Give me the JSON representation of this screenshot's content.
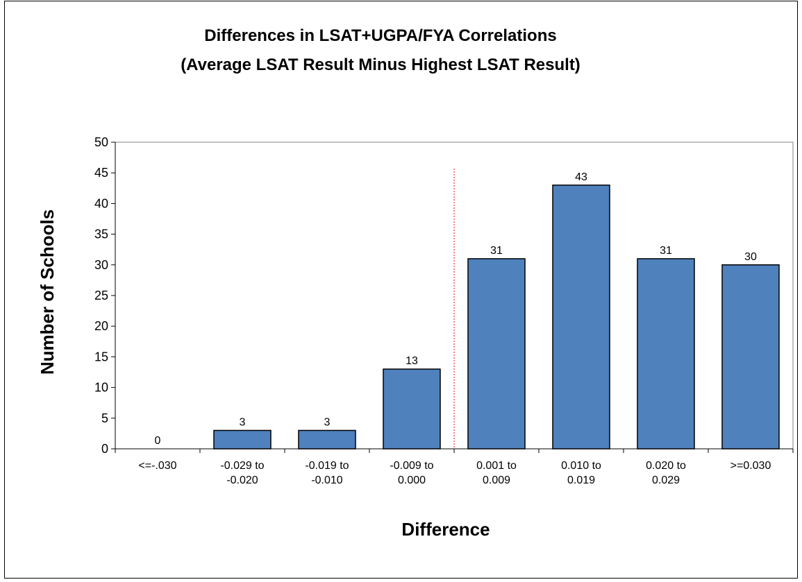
{
  "chart_data": {
    "type": "bar",
    "title": "Differences in LSAT+UGPA/FYA Correlations",
    "subtitle": "(Average LSAT Result Minus Highest LSAT Result)",
    "xlabel": "Difference",
    "ylabel": "Number of Schools",
    "categories": [
      [
        "<=-.030"
      ],
      [
        "-0.029 to",
        "-0.020"
      ],
      [
        "-0.019 to",
        "-0.010"
      ],
      [
        "-0.009 to",
        "0.000"
      ],
      [
        "0.001 to",
        "0.009"
      ],
      [
        "0.010 to",
        "0.019"
      ],
      [
        "0.020 to",
        "0.029"
      ],
      [
        ">=0.030"
      ]
    ],
    "values": [
      0,
      3,
      3,
      13,
      31,
      43,
      31,
      30
    ],
    "data_labels": [
      "0",
      "3",
      "3",
      "13",
      "31",
      "43",
      "31",
      "30"
    ],
    "ylim": [
      0,
      50
    ],
    "yticks": [
      "0",
      "5",
      "10",
      "15",
      "20",
      "25",
      "30",
      "35",
      "40",
      "45",
      "50"
    ],
    "grid": false,
    "legend": "none",
    "divider_after_category": 3,
    "colors": {
      "bar_fill": "#4f81bd",
      "bar_stroke": "#000000",
      "divider": "#ff0000",
      "axis": "#000000"
    }
  }
}
